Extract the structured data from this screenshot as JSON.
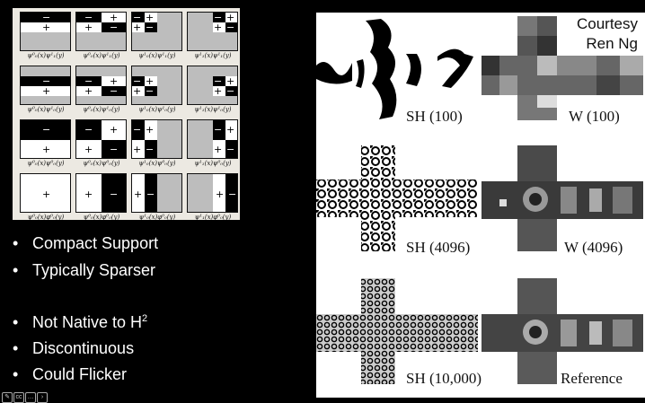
{
  "bullets_group1": [
    "Compact Support",
    "Typically Sparser"
  ],
  "bullets_group2": [
    {
      "text": "Not Native to H",
      "sup": "2"
    },
    {
      "text": "Discontinuous",
      "sup": ""
    },
    {
      "text": "Could Flicker",
      "sup": ""
    }
  ],
  "credit": {
    "line1": "Courtesy",
    "line2": "Ren Ng"
  },
  "rows": [
    {
      "sh": "SH (100)",
      "w": "W (100)"
    },
    {
      "sh": "SH (4096)",
      "w": "W (4096)"
    },
    {
      "sh": "SH (10,000)",
      "w": "Reference"
    }
  ],
  "haar_captions": [
    [
      "ψ⁰₀(x)ψ¹₁(y)",
      "ψ⁰₀(x)ψ¹₁(y)",
      "ψ¹₀(x)ψ¹₁(y)",
      "ψ¹₁(x)ψ¹₁(y)"
    ],
    [
      "ψ⁰₀(x)ψ¹₀(y)",
      "ψ⁰₀(x)ψ¹₀(y)",
      "ψ¹₀(x)ψ¹₀(y)",
      "ψ¹₁(x)ψ¹₀(y)"
    ],
    [
      "ψ⁰₀(x)ψ⁰₀(y)",
      "ψ⁰₀(x)ψ⁰₀(y)",
      "ψ¹₀(x)ψ⁰₀(y)",
      "ψ¹₁(x)ψ⁰₀(y)"
    ],
    [
      "ψ⁰₀(x)φ⁰₀(y)",
      "ψ⁰₀(x)φ⁰₀(y)",
      "ψ¹₀(x)φ⁰₀(y)",
      "ψ¹₁(x)φ⁰₀(y)"
    ]
  ],
  "signs": {
    "plus": "+",
    "minus": "−"
  },
  "toolbar": [
    "pen-icon",
    "captions-icon",
    "more-icon",
    "next-icon"
  ]
}
